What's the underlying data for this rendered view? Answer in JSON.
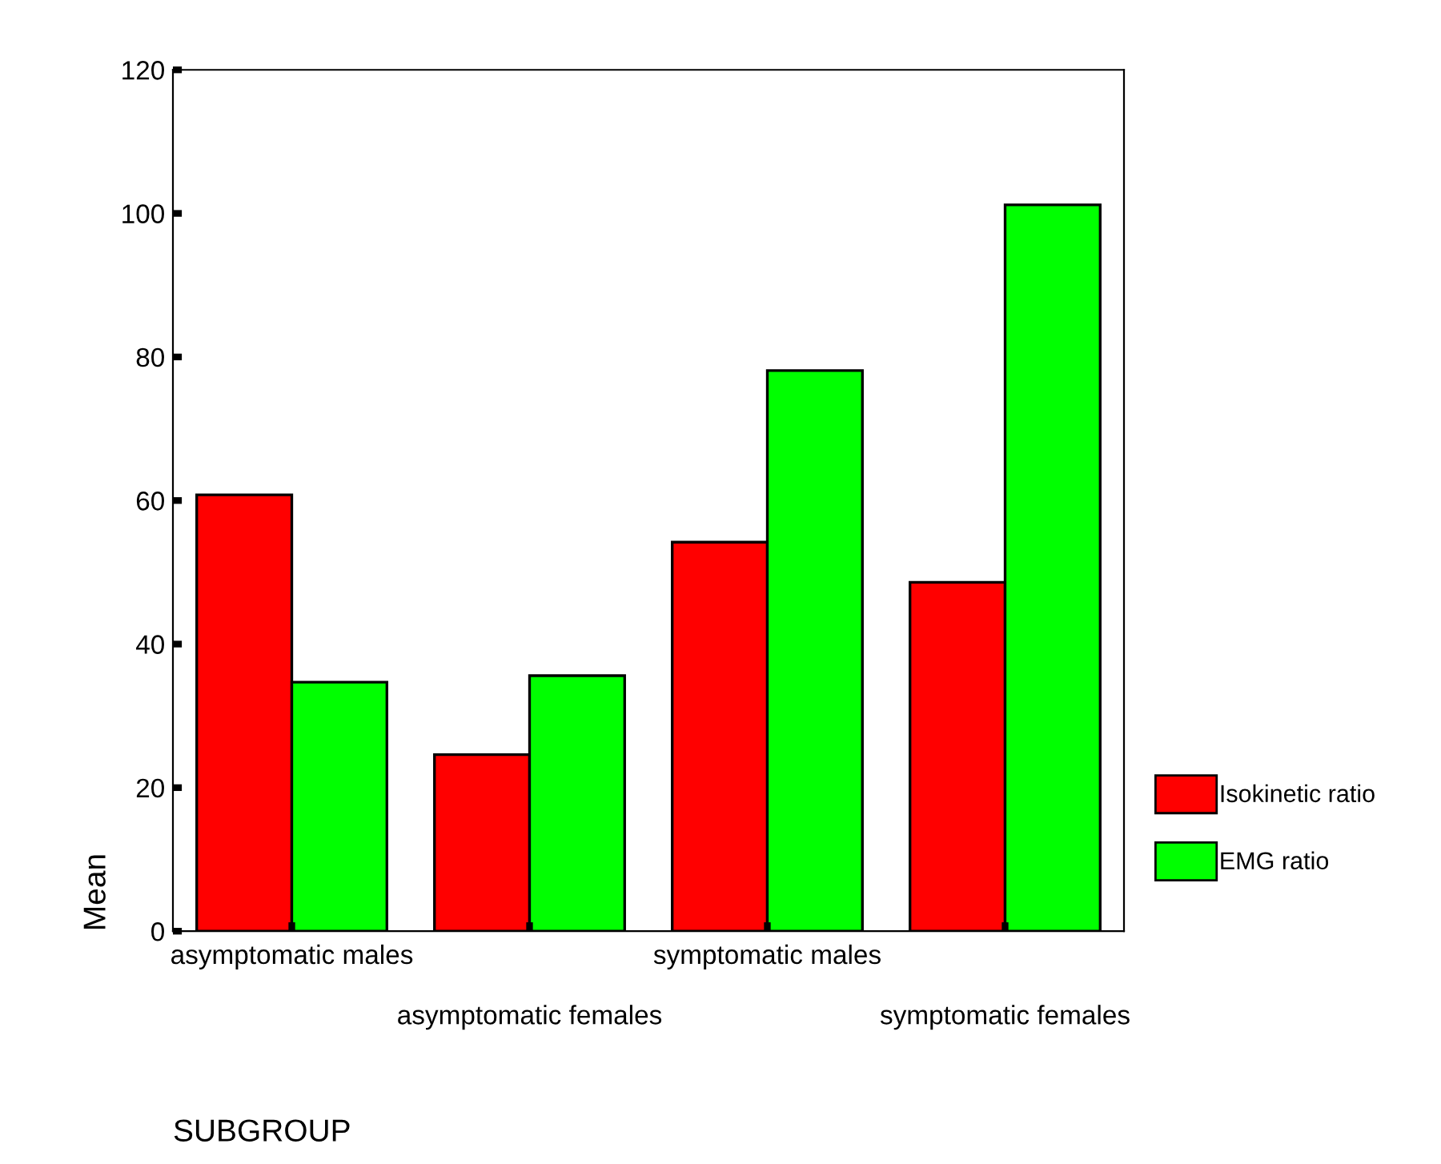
{
  "chart_data": {
    "type": "bar",
    "xlabel": "SUBGROUP",
    "ylabel": "Mean",
    "categories": [
      "asymptomatic males",
      "asymptomatic females",
      "symptomatic males",
      "symptomatic females"
    ],
    "series": [
      {
        "name": "Isokinetic ratio",
        "color": "#ff0000",
        "values": [
          60.8,
          24.6,
          54.2,
          48.6
        ]
      },
      {
        "name": "EMG ratio",
        "color": "#00ff00",
        "values": [
          34.7,
          35.6,
          78.1,
          101.2
        ]
      }
    ],
    "ylim": [
      0,
      120
    ],
    "yticks": [
      0,
      20,
      40,
      60,
      80,
      100,
      120
    ],
    "grid": false,
    "legend": "right"
  }
}
